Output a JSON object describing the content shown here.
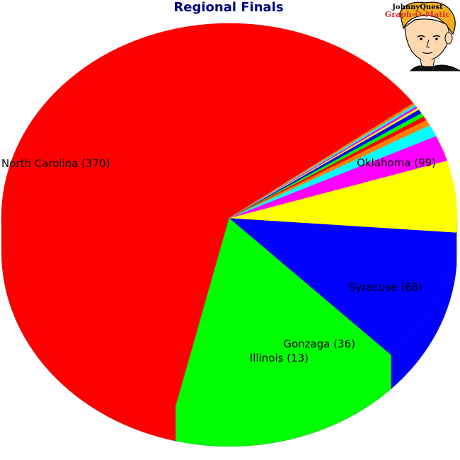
{
  "colors": {
    "title": "#000080",
    "red": "#ff0000",
    "green": "#00ff00",
    "blue": "#0000ff",
    "yellow": "#ffff00",
    "magenta": "#ff00ff",
    "cyan": "#00ffff",
    "orange": "#ff8000"
  },
  "logo": {
    "line1": "JohnnyQuest",
    "line2": "Graph-O-Matic",
    "icon": "johnny-quest-cartoon-icon"
  },
  "chart_data": {
    "type": "pie",
    "title": "Regional Finals",
    "style": "3d",
    "slices": [
      {
        "name": "North Carolina",
        "value": 370,
        "color": "#ff0000",
        "label": "North Carolina (370)"
      },
      {
        "name": "Oklahoma",
        "value": 99,
        "color": "#00ff00",
        "label": "Oklahoma (99)"
      },
      {
        "name": "Syracuse",
        "value": 68,
        "color": "#0000ff",
        "label": "Syracuse (68)"
      },
      {
        "name": "Gonzaga",
        "value": 36,
        "color": "#ffff00",
        "label": "Gonzaga (36)"
      },
      {
        "name": "Illinois",
        "value": 13,
        "color": "#ff00ff",
        "label": "Illinois (13)"
      },
      {
        "name": "",
        "value": 6,
        "color": "#00ffff",
        "label": ""
      },
      {
        "name": "",
        "value": 3,
        "color": "#ff8000",
        "label": ""
      },
      {
        "name": "",
        "value": 2,
        "color": "#ff0000",
        "label": ""
      },
      {
        "name": "",
        "value": 2,
        "color": "#00ff00",
        "label": ""
      },
      {
        "name": "",
        "value": 2,
        "color": "#0000ff",
        "label": ""
      },
      {
        "name": "",
        "value": 1,
        "color": "#ffff00",
        "label": ""
      },
      {
        "name": "",
        "value": 1,
        "color": "#ff00ff",
        "label": ""
      },
      {
        "name": "",
        "value": 1,
        "color": "#00ffff",
        "label": ""
      },
      {
        "name": "",
        "value": 1,
        "color": "#ff8000",
        "label": ""
      }
    ]
  }
}
